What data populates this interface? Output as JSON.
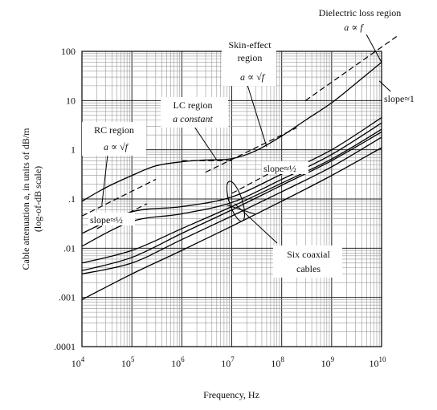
{
  "chart_data": {
    "type": "line",
    "x_scale": "log",
    "y_scale": "log",
    "xlim": [
      10000,
      10000000000
    ],
    "ylim": [
      0.0001,
      100
    ],
    "grid": true,
    "xlabel": "Frequency, Hz",
    "ylabel_line1": "Cable attenuation a, in units of dB/m",
    "ylabel_line2": "(log-of-dB scale)",
    "x_ticks": [
      {
        "value": 10000,
        "base": "10",
        "exp": "4"
      },
      {
        "value": 100000,
        "base": "10",
        "exp": "5"
      },
      {
        "value": 1000000,
        "base": "10",
        "exp": "6"
      },
      {
        "value": 10000000,
        "base": "10",
        "exp": "7"
      },
      {
        "value": 100000000,
        "base": "10",
        "exp": "8"
      },
      {
        "value": 1000000000,
        "base": "10",
        "exp": "9"
      },
      {
        "value": 10000000000,
        "base": "10",
        "exp": "10"
      }
    ],
    "y_ticks": [
      {
        "value": 100,
        "label": "100"
      },
      {
        "value": 10,
        "label": "10"
      },
      {
        "value": 1,
        "label": "1"
      },
      {
        "value": 0.1,
        "label": ".1"
      },
      {
        "value": 0.01,
        "label": ".01"
      },
      {
        "value": 0.001,
        "label": ".001"
      },
      {
        "value": 0.0001,
        "label": ".0001"
      }
    ],
    "series": [
      {
        "id": "main-cable",
        "style": "solid",
        "x": [
          10000,
          30000,
          100000,
          300000,
          1000000,
          3000000,
          10000000,
          30000000,
          100000000,
          300000000,
          1000000000,
          3000000000,
          10000000000
        ],
        "y": [
          0.09,
          0.17,
          0.3,
          0.47,
          0.57,
          0.62,
          0.66,
          0.95,
          1.9,
          4.0,
          9.0,
          22,
          60
        ]
      },
      {
        "id": "coax-1",
        "style": "solid",
        "x": [
          10000,
          100000,
          1000000,
          10000000,
          100000000,
          1000000000,
          10000000000
        ],
        "y": [
          0.02,
          0.055,
          0.07,
          0.11,
          0.32,
          1.0,
          4.5
        ]
      },
      {
        "id": "coax-2",
        "style": "solid",
        "x": [
          10000,
          100000,
          1000000,
          10000000,
          100000000,
          1000000000,
          10000000000
        ],
        "y": [
          0.011,
          0.035,
          0.05,
          0.085,
          0.25,
          0.8,
          3.5
        ]
      },
      {
        "id": "coax-3",
        "style": "solid",
        "x": [
          10000,
          100000,
          1000000,
          10000000,
          100000000,
          1000000000,
          10000000000
        ],
        "y": [
          0.005,
          0.009,
          0.025,
          0.07,
          0.21,
          0.65,
          2.6
        ]
      },
      {
        "id": "coax-4",
        "style": "solid",
        "x": [
          10000,
          100000,
          1000000,
          10000000,
          100000000,
          1000000000,
          10000000000
        ],
        "y": [
          0.0035,
          0.0065,
          0.02,
          0.06,
          0.19,
          0.6,
          2.3
        ]
      },
      {
        "id": "coax-5",
        "style": "solid",
        "x": [
          10000,
          100000,
          1000000,
          10000000,
          100000000,
          1000000000,
          10000000000
        ],
        "y": [
          0.003,
          0.005,
          0.015,
          0.045,
          0.14,
          0.45,
          1.8
        ]
      },
      {
        "id": "coax-6",
        "style": "solid",
        "x": [
          10000,
          100000,
          1000000,
          10000000,
          100000000,
          1000000000,
          10000000000
        ],
        "y": [
          0.0009,
          0.003,
          0.009,
          0.028,
          0.09,
          0.3,
          1.1
        ]
      },
      {
        "id": "asymptote-rc",
        "style": "dashed",
        "x": [
          10000,
          300000
        ],
        "y": [
          0.045,
          0.25
        ]
      },
      {
        "id": "asymptote-lc",
        "style": "dashed",
        "x": [
          1000000,
          10000000
        ],
        "y": [
          0.6,
          0.6
        ]
      },
      {
        "id": "asymptote-skin",
        "style": "dashed",
        "x": [
          3000000,
          200000000
        ],
        "y": [
          0.35,
          2.8
        ]
      },
      {
        "id": "asymptote-dielectric",
        "style": "dashed",
        "x": [
          300000000,
          20000000000
        ],
        "y": [
          10,
          200
        ]
      },
      {
        "id": "asymptote-coax-upper",
        "style": "dashed",
        "x": [
          20000,
          200000
        ],
        "y": [
          0.025,
          0.08
        ]
      },
      {
        "id": "asymptote-coax-lower",
        "style": "dashed",
        "x": [
          10000000,
          100000000
        ],
        "y": [
          0.13,
          0.45
        ]
      }
    ],
    "annotations": {
      "dielectric_title": "Dielectric loss region",
      "dielectric_formula": "a ∝ f",
      "skin_title_1": "Skin-effect",
      "skin_title_2": "region",
      "skin_formula": "a ∝ √f",
      "lc_title": "LC region",
      "lc_formula": "a constant",
      "rc_title": "RC region",
      "rc_formula": "a ∝ √f",
      "slope_1": "slope≈1",
      "slope_half_a": "slope≈½",
      "slope_half_b": "slope≈½",
      "six_coax_1": "Six coaxial",
      "six_coax_2": "cables"
    }
  }
}
